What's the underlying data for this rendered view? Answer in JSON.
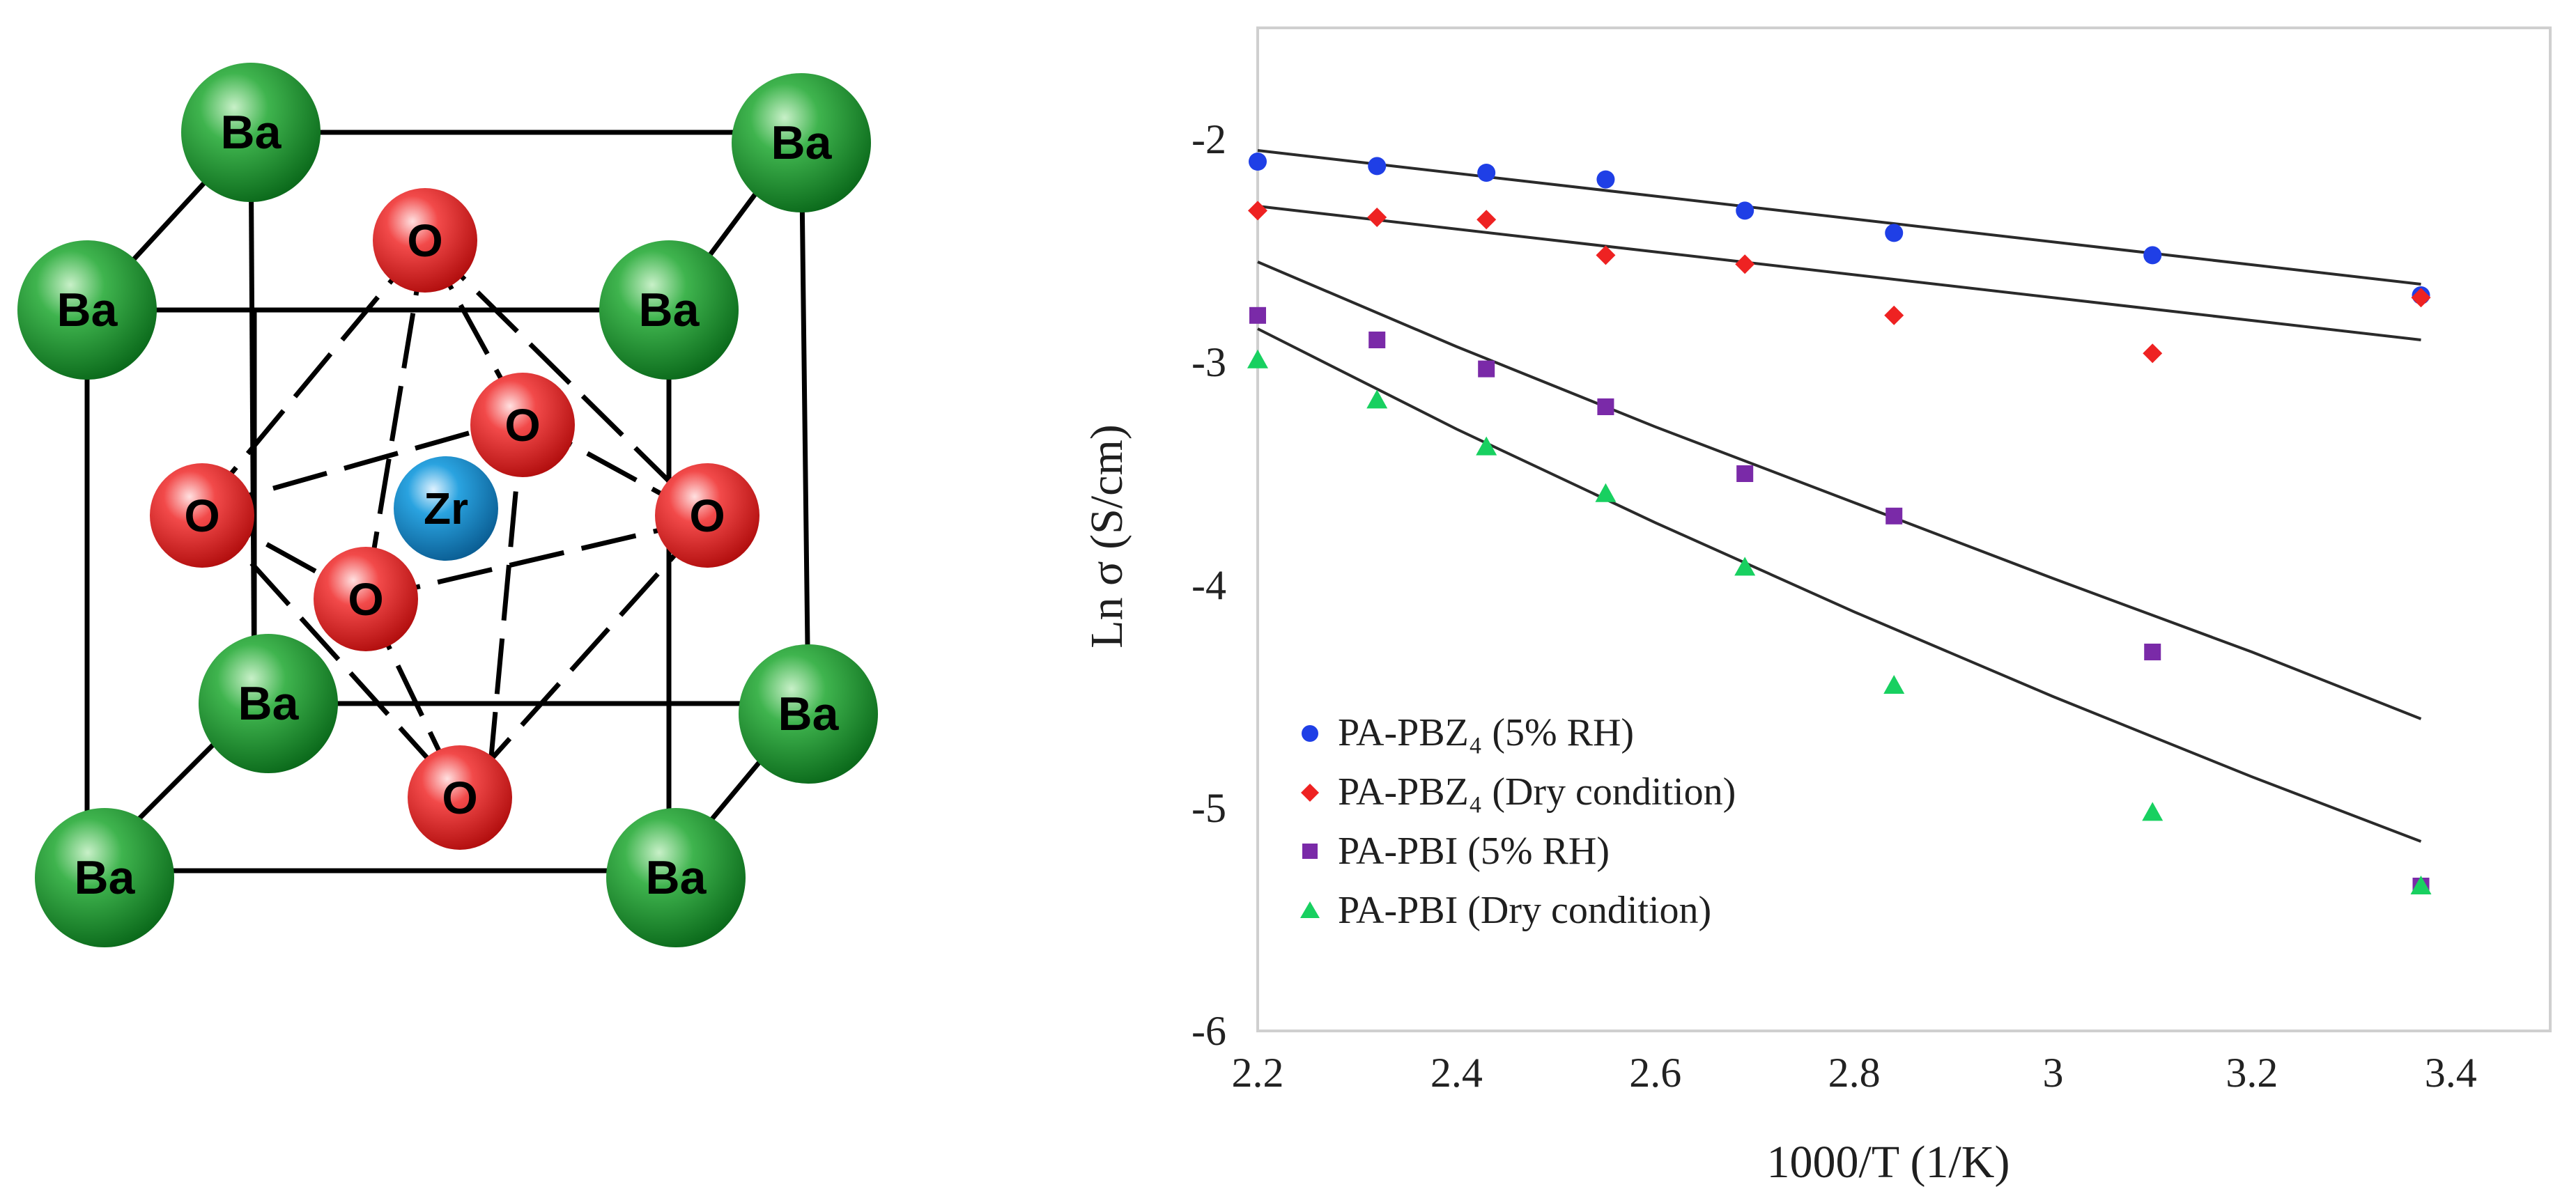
{
  "crystal": {
    "atoms": [
      {
        "label": "Ba",
        "element": "Ba",
        "color": "#14902a"
      },
      {
        "label": "O",
        "element": "O",
        "color": "#e81f1f"
      },
      {
        "label": "Zr",
        "element": "Zr",
        "color": "#1e8fd0"
      }
    ],
    "labels": {
      "ba": "Ba",
      "o": "O",
      "zr": "Zr"
    }
  },
  "chart_data": {
    "type": "scatter",
    "title": "",
    "xlabel": "1000/T (1/K)",
    "ylabel": "Ln σ (S/cm)",
    "xlim": [
      2.2,
      3.5
    ],
    "ylim": [
      -6,
      -1.5
    ],
    "xticks": [
      2.2,
      2.4,
      2.6,
      2.8,
      3,
      3.2,
      3.4
    ],
    "xtick_labels": [
      "2.2",
      "2.4",
      "2.6",
      "2.8",
      "3",
      "3.2",
      "3.4"
    ],
    "yticks": [
      -2,
      -3,
      -4,
      -5,
      -6
    ],
    "ytick_labels": [
      "-2",
      "-3",
      "-4",
      "-5",
      "-6"
    ],
    "grid": false,
    "legend_position": "bottom-left",
    "series": [
      {
        "name": "PA-PBZ₄ (5% RH)",
        "marker": "circle",
        "color": "#1f3fe6",
        "x": [
          2.2,
          2.32,
          2.43,
          2.55,
          2.69,
          2.84,
          3.1,
          3.37
        ],
        "y": [
          -2.1,
          -2.12,
          -2.15,
          -2.18,
          -2.32,
          -2.42,
          -2.52,
          -2.7
        ],
        "fit": [
          [
            2.2,
            -2.05
          ],
          [
            3.37,
            -2.65
          ]
        ]
      },
      {
        "name": "PA-PBZ₄ (Dry condition)",
        "marker": "diamond",
        "color": "#ee2222",
        "x": [
          2.2,
          2.32,
          2.43,
          2.55,
          2.69,
          2.84,
          3.1,
          3.37
        ],
        "y": [
          -2.32,
          -2.35,
          -2.36,
          -2.52,
          -2.56,
          -2.79,
          -2.96,
          -2.71
        ],
        "fit": [
          [
            2.2,
            -2.3
          ],
          [
            3.37,
            -2.9
          ]
        ]
      },
      {
        "name": "PA-PBI (5% RH)",
        "marker": "square",
        "color": "#7a2aa8",
        "x": [
          2.2,
          2.32,
          2.43,
          2.55,
          2.69,
          2.84,
          3.1,
          3.37
        ],
        "y": [
          -2.79,
          -2.9,
          -3.03,
          -3.2,
          -3.5,
          -3.69,
          -4.3,
          -5.35
        ],
        "fit": [
          [
            2.2,
            -2.55
          ],
          [
            2.4,
            -2.93
          ],
          [
            2.6,
            -3.29
          ],
          [
            2.8,
            -3.63
          ],
          [
            3.0,
            -3.97
          ],
          [
            3.2,
            -4.3
          ],
          [
            3.37,
            -4.6
          ]
        ]
      },
      {
        "name": "PA-PBI (Dry condition)",
        "marker": "triangle",
        "color": "#18d060",
        "x": [
          2.2,
          2.32,
          2.43,
          2.55,
          2.69,
          2.84,
          3.1,
          3.37
        ],
        "y": [
          -2.99,
          -3.17,
          -3.38,
          -3.59,
          -3.92,
          -4.45,
          -5.02,
          -5.35
        ],
        "fit": [
          [
            2.2,
            -2.85
          ],
          [
            2.4,
            -3.3
          ],
          [
            2.6,
            -3.72
          ],
          [
            2.8,
            -4.12
          ],
          [
            3.0,
            -4.5
          ],
          [
            3.2,
            -4.86
          ],
          [
            3.37,
            -5.15
          ]
        ]
      }
    ]
  }
}
